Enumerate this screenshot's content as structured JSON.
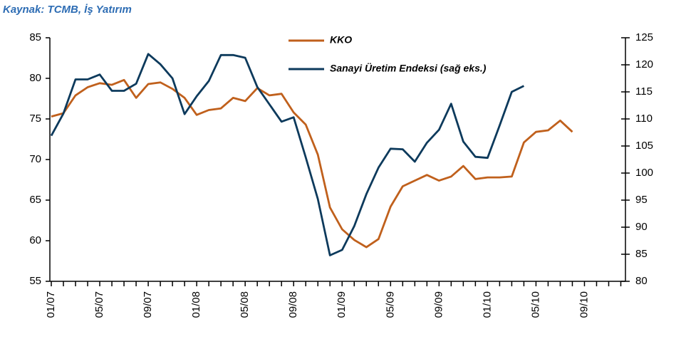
{
  "chart_data": {
    "type": "line",
    "title": "Kaynak: TCMB, İş Yatırım",
    "categories": [
      "01/07",
      null,
      null,
      null,
      "05/07",
      null,
      null,
      null,
      "09/07",
      null,
      null,
      null,
      "01/08",
      null,
      null,
      null,
      "05/08",
      null,
      null,
      null,
      "09/08",
      null,
      null,
      null,
      "01/09",
      null,
      null,
      null,
      "05/09",
      null,
      null,
      null,
      "09/09",
      null,
      null,
      null,
      "01/10",
      null,
      null,
      null,
      "05/10",
      null,
      null,
      null,
      "09/10",
      null,
      null,
      null
    ],
    "series": [
      {
        "name": "KKO",
        "color": "#c0601c",
        "values": [
          75.3,
          75.7,
          77.9,
          78.9,
          79.4,
          79.2,
          79.8,
          77.6,
          79.3,
          79.5,
          78.7,
          77.6,
          75.5,
          76.1,
          76.3,
          77.6,
          77.2,
          78.8,
          77.9,
          78.1,
          75.8,
          74.3,
          70.6,
          64.1,
          61.4,
          60.1,
          59.2,
          60.2,
          64.2,
          66.7,
          67.4,
          68.1,
          67.4,
          67.9,
          69.2,
          67.6,
          67.8,
          67.8,
          67.9,
          72.1,
          73.4,
          73.6,
          74.8,
          73.4,
          null,
          null,
          null,
          null
        ]
      },
      {
        "name": "Sanayi Üretim Endeksi (sağ eks.)",
        "color": "#0d3a5c",
        "axis": "y2",
        "values": [
          106.9,
          111,
          117.3,
          117.3,
          118.2,
          115.2,
          115.2,
          116.5,
          122,
          120.1,
          117.5,
          110.9,
          114.2,
          117,
          121.8,
          121.8,
          121.3,
          115.9,
          112.7,
          109.5,
          110.3,
          102.9,
          95.2,
          84.8,
          85.8,
          90.2,
          96.1,
          101,
          104.5,
          104.4,
          102.1,
          105.6,
          108,
          112.8,
          105.8,
          103,
          102.8,
          108.8,
          115,
          116.1,
          null,
          null,
          null,
          null,
          null,
          null,
          null,
          null
        ]
      }
    ],
    "ylim": [
      55,
      85
    ],
    "yticks": [
      55,
      60,
      65,
      70,
      75,
      80,
      85
    ],
    "y2lim": [
      80,
      125
    ],
    "y2ticks": [
      80,
      85,
      90,
      95,
      100,
      105,
      110,
      115,
      120,
      125
    ]
  }
}
